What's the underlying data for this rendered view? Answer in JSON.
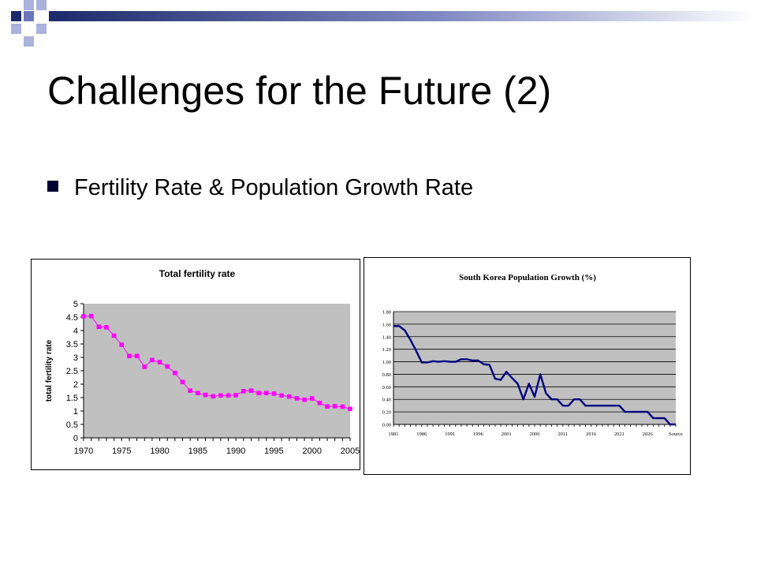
{
  "slide": {
    "title": "Challenges for the Future (2)",
    "bullet": "Fertility Rate & Population Growth Rate"
  },
  "colors": {
    "deco_navy": "#1c2a6b",
    "deco_mid": "#6b75b8",
    "deco_light": "#aab2dc",
    "bullet": "#000033",
    "plot_bg": "#c0c0c0",
    "fertility_series": "#ff00ff",
    "growth_series": "#000080"
  },
  "chart_data": [
    {
      "type": "line",
      "title": "Total fertility rate",
      "ylabel": "total fertility rate",
      "xlabel": "",
      "ylim": [
        0,
        5
      ],
      "yticks": [
        0,
        0.5,
        1,
        1.5,
        2,
        2.5,
        3,
        3.5,
        4,
        4.5,
        5
      ],
      "ytick_labels": [
        "0",
        "0.5",
        "1",
        "1.5",
        "2",
        "2.5",
        "3",
        "3.5",
        "4",
        "4.5",
        "5"
      ],
      "xlim": [
        1970,
        2005
      ],
      "xticks": [
        1970,
        1975,
        1980,
        1985,
        1990,
        1995,
        2000,
        2005
      ],
      "xtick_labels": [
        "1970",
        "1975",
        "1980",
        "1985",
        "1990",
        "1995",
        "2000",
        "2005"
      ],
      "grid": false,
      "marker": "square",
      "x": [
        1970,
        1971,
        1972,
        1973,
        1974,
        1975,
        1976,
        1977,
        1978,
        1979,
        1980,
        1981,
        1982,
        1983,
        1984,
        1985,
        1986,
        1987,
        1988,
        1989,
        1990,
        1991,
        1992,
        1993,
        1994,
        1995,
        1996,
        1997,
        1998,
        1999,
        2000,
        2001,
        2002,
        2003,
        2004,
        2005
      ],
      "values": [
        4.53,
        4.54,
        4.14,
        4.12,
        3.81,
        3.47,
        3.05,
        3.05,
        2.65,
        2.9,
        2.82,
        2.66,
        2.42,
        2.08,
        1.76,
        1.67,
        1.6,
        1.55,
        1.58,
        1.58,
        1.59,
        1.74,
        1.76,
        1.67,
        1.67,
        1.65,
        1.58,
        1.54,
        1.47,
        1.42,
        1.47,
        1.3,
        1.17,
        1.18,
        1.16,
        1.08
      ]
    },
    {
      "type": "line",
      "title": "South Korea  Population Growth (%)",
      "xlabel": "",
      "ylabel": "",
      "ylim": [
        0,
        1.8
      ],
      "yticks": [
        0,
        0.2,
        0.4,
        0.6,
        0.8,
        1.0,
        1.2,
        1.4,
        1.6,
        1.8
      ],
      "ytick_labels": [
        "0.00",
        "0.20",
        "0.40",
        "0.60",
        "0.80",
        "1.00",
        "1.20",
        "1.40",
        "1.60",
        "1.80"
      ],
      "xlim": [
        1981,
        2031
      ],
      "xticks": [
        1981,
        1986,
        1991,
        1996,
        2001,
        2006,
        2011,
        2016,
        2021,
        2026,
        2031
      ],
      "xtick_labels": [
        "1981",
        "1986",
        "1991",
        "1996",
        "2001",
        "2006",
        "2011",
        "2016",
        "2021",
        "2026",
        "Source"
      ],
      "grid": true,
      "x": [
        1981,
        1982,
        1983,
        1984,
        1985,
        1986,
        1987,
        1988,
        1989,
        1990,
        1991,
        1992,
        1993,
        1994,
        1995,
        1996,
        1997,
        1998,
        1999,
        2000,
        2001,
        2002,
        2003,
        2004,
        2005,
        2006,
        2007,
        2008,
        2009,
        2010,
        2011,
        2012,
        2013,
        2014,
        2015,
        2016,
        2017,
        2018,
        2019,
        2020,
        2021,
        2022,
        2023,
        2024,
        2025,
        2026,
        2027,
        2028,
        2029,
        2030,
        2031
      ],
      "values": [
        1.57,
        1.57,
        1.5,
        1.35,
        1.18,
        0.99,
        0.99,
        1.01,
        1.0,
        1.01,
        1.0,
        1.0,
        1.04,
        1.04,
        1.02,
        1.02,
        0.96,
        0.95,
        0.73,
        0.71,
        0.84,
        0.74,
        0.65,
        0.4,
        0.65,
        0.44,
        0.8,
        0.5,
        0.4,
        0.4,
        0.3,
        0.3,
        0.4,
        0.4,
        0.3,
        0.3,
        0.3,
        0.3,
        0.3,
        0.3,
        0.3,
        0.2,
        0.2,
        0.2,
        0.2,
        0.2,
        0.1,
        0.1,
        0.1,
        0.0,
        0.0
      ]
    }
  ]
}
